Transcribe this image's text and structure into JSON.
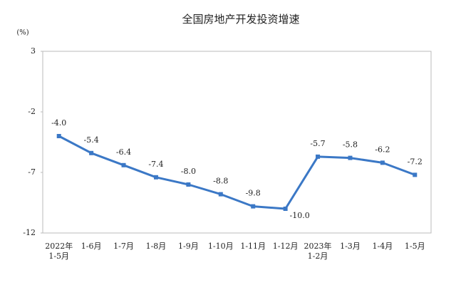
{
  "chart_data": {
    "type": "line",
    "title": "全国房地产开发投资增速",
    "unit": "(%)",
    "categories": [
      "2022年\n1-5月",
      "1-6月",
      "1-7月",
      "1-8月",
      "1-9月",
      "1-10月",
      "1-11月",
      "1-12月",
      "2023年\n1-2月",
      "1-3月",
      "1-4月",
      "1-5月"
    ],
    "series": [
      {
        "name": "全国房地产开发投资增速",
        "color": "#3b78c6",
        "values": [
          -4.0,
          -5.4,
          -6.4,
          -7.4,
          -8.0,
          -8.8,
          -9.8,
          -10.0,
          -5.7,
          -5.8,
          -6.2,
          -7.2
        ],
        "value_labels": [
          "-4.0",
          "-5.4",
          "-6.4",
          "-7.4",
          "-8.0",
          "-8.8",
          "-9.8",
          "-10.0",
          "-5.7",
          "-5.8",
          "-6.2",
          "-7.2"
        ]
      }
    ],
    "ylim": [
      -12,
      3
    ],
    "yticks": [
      3,
      -2,
      -7,
      -12
    ],
    "grid": false
  }
}
